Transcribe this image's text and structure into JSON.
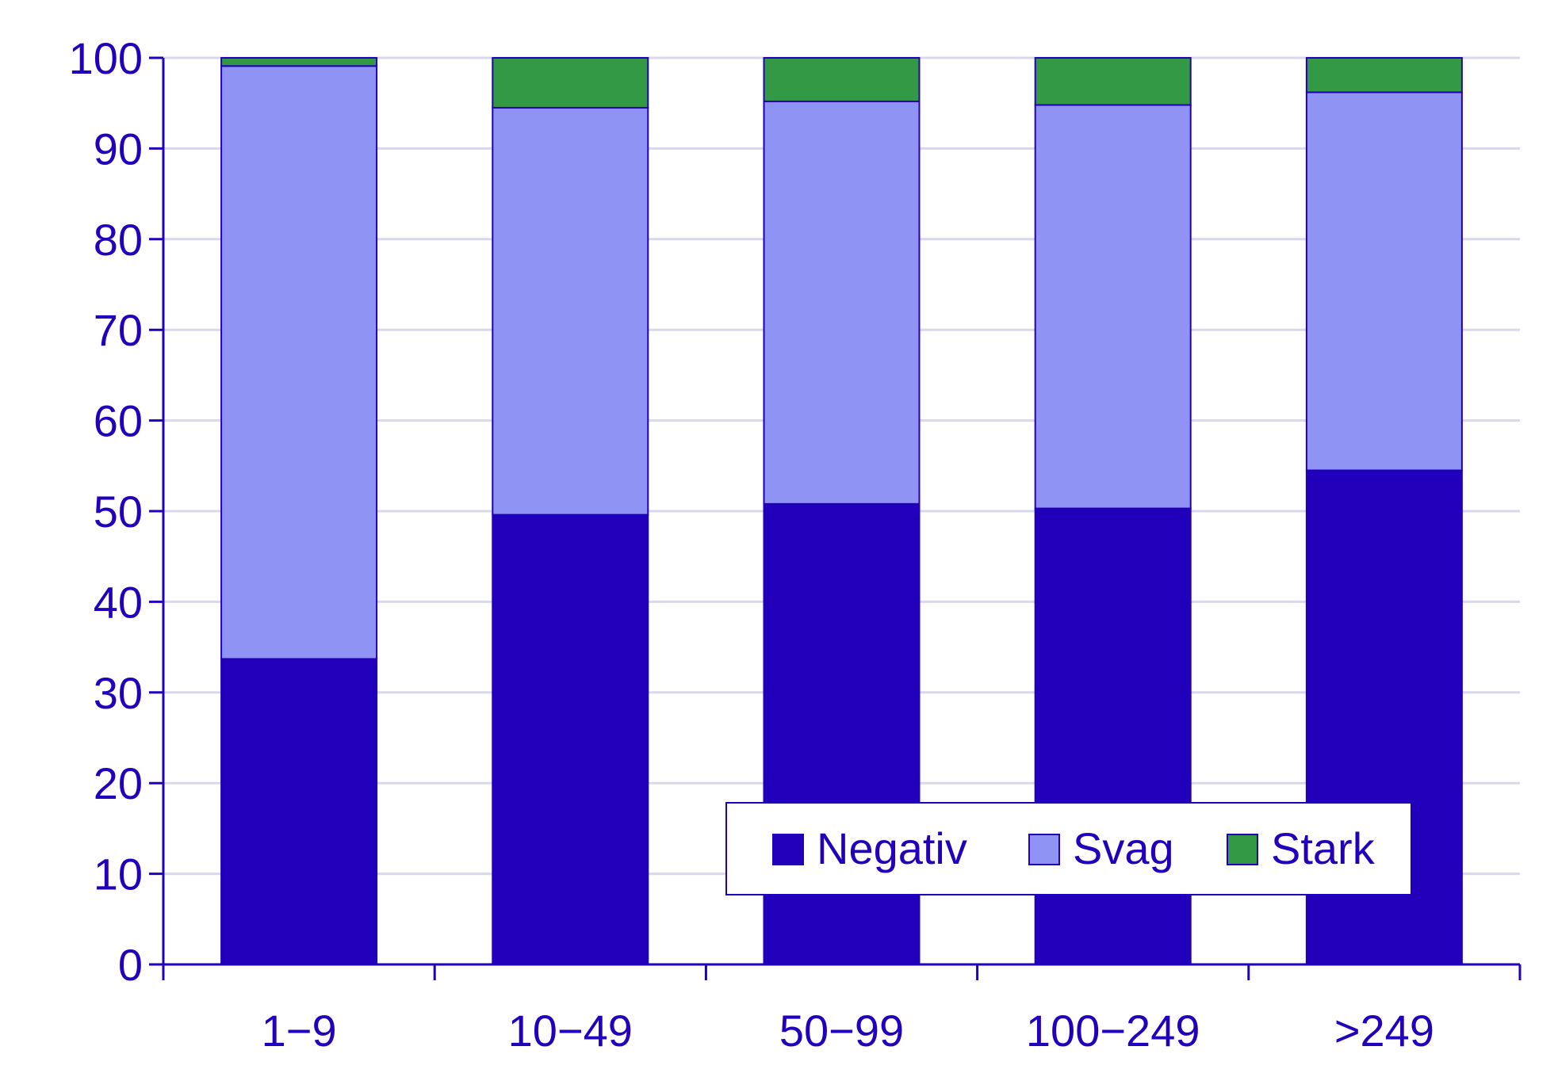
{
  "chart_data": {
    "type": "bar",
    "stacked": true,
    "categories": [
      "1−9",
      "10−49",
      "50−99",
      "100−249",
      ">249"
    ],
    "series": [
      {
        "name": "Negativ",
        "color": "#2200bb",
        "values": [
          33.7,
          49.6,
          50.8,
          50.3,
          54.5
        ]
      },
      {
        "name": "Svag",
        "color": "#8f93f4",
        "values": [
          65.4,
          44.9,
          44.4,
          44.5,
          41.7
        ]
      },
      {
        "name": "Stark",
        "color": "#339944",
        "values": [
          0.9,
          5.5,
          4.8,
          5.2,
          3.8
        ]
      }
    ],
    "ylim": [
      0,
      100
    ],
    "yticks": [
      0,
      10,
      20,
      30,
      40,
      50,
      60,
      70,
      80,
      90,
      100
    ],
    "grid": true,
    "legend_position": "bottom-right",
    "axis_color": "#2200bb",
    "grid_color": "#d8d8ec"
  }
}
